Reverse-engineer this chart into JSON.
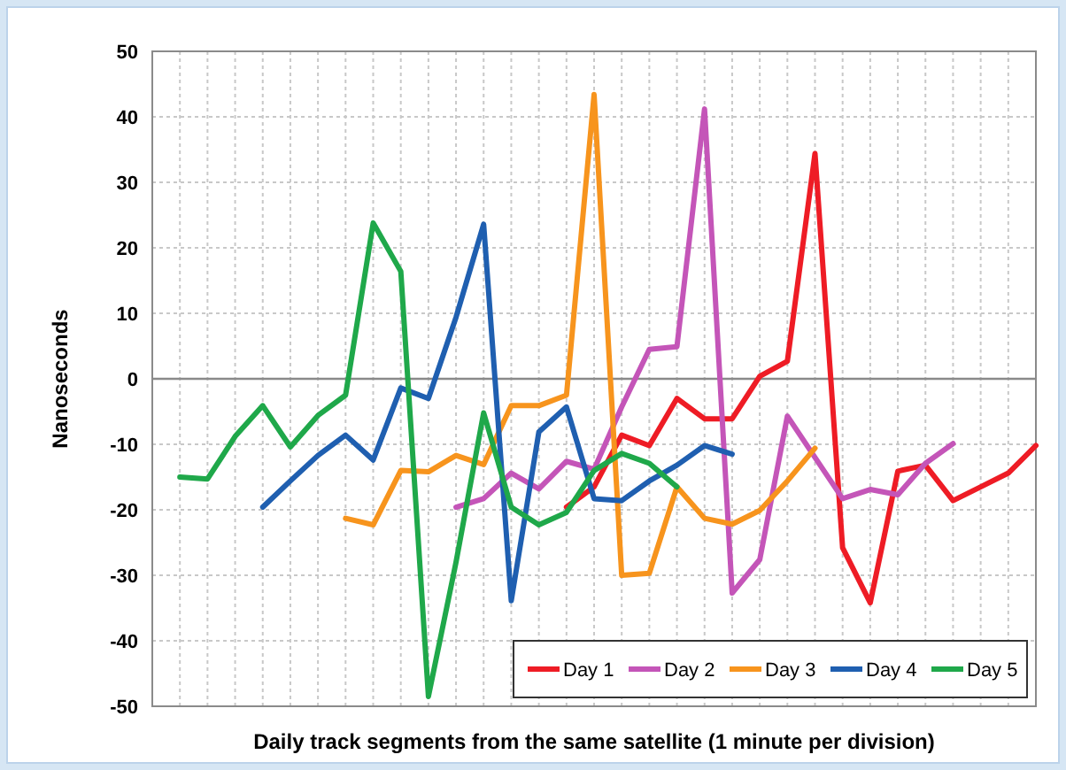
{
  "chart_data": {
    "type": "line",
    "xlabel": "Daily track segments from the same satellite (1 minute per division)",
    "ylabel": "Nanoseconds",
    "categories": [
      null,
      null,
      null,
      null,
      null,
      null,
      null,
      null,
      null,
      null,
      null,
      null,
      null,
      null,
      null,
      null,
      null,
      null,
      null,
      null,
      null,
      null,
      null,
      null,
      null,
      null,
      null,
      null,
      null,
      null,
      null,
      null,
      null
    ],
    "ylim": [
      -50,
      50
    ],
    "yticks": [
      -50,
      -40,
      -30,
      -20,
      -10,
      0,
      10,
      20,
      30,
      40,
      50
    ],
    "grid": true,
    "legend": "bottom right",
    "marker": "none",
    "line_style": "solid",
    "series": [
      {
        "name": "Day 1",
        "color": "#ee1c25",
        "values": [
          null,
          null,
          null,
          null,
          null,
          null,
          null,
          null,
          null,
          null,
          null,
          null,
          null,
          null,
          null,
          -19.6,
          -16.5,
          -8.6,
          -10.2,
          -3.0,
          -6.1,
          -6.1,
          0.4,
          2.7,
          34.4,
          -25.8,
          -34.2,
          -14.1,
          -13.2,
          -18.6,
          -16.5,
          -14.4,
          -10.2
        ]
      },
      {
        "name": "Day 2",
        "color": "#c455b8",
        "values": [
          null,
          null,
          null,
          null,
          null,
          null,
          null,
          null,
          null,
          null,
          null,
          -19.6,
          -18.3,
          -14.4,
          -16.8,
          -12.6,
          -13.8,
          -4.3,
          4.5,
          4.9,
          41.2,
          -32.7,
          -27.6,
          -5.7,
          -12,
          -18.3,
          -16.9,
          -17.7,
          -12.9,
          -9.9,
          null,
          null,
          null
        ]
      },
      {
        "name": "Day 3",
        "color": "#f7941d",
        "values": [
          null,
          null,
          null,
          null,
          null,
          null,
          null,
          -21.3,
          -22.3,
          -14.0,
          -14.2,
          -11.7,
          -13.1,
          -4.1,
          -4.1,
          -2.5,
          43.4,
          -30.0,
          -29.7,
          -16.5,
          -21.3,
          -22.2,
          -20.1,
          -15.6,
          -10.6,
          null,
          null,
          null,
          null,
          null,
          null,
          null,
          null
        ]
      },
      {
        "name": "Day 4",
        "color": "#1f5fb0",
        "values": [
          null,
          null,
          null,
          null,
          -19.6,
          -15.6,
          -11.7,
          -8.6,
          -12.4,
          -1.4,
          -3.0,
          9.4,
          23.6,
          -33.9,
          -8.1,
          -4.3,
          -18.3,
          -18.6,
          -15.6,
          -13.2,
          -10.2,
          -11.5,
          null,
          null,
          null,
          null,
          null,
          null,
          null,
          null,
          null,
          null,
          null
        ]
      },
      {
        "name": "Day 5",
        "color": "#1fa84a",
        "values": [
          null,
          -15.0,
          -15.3,
          -8.8,
          -4.1,
          -10.4,
          -5.6,
          -2.5,
          23.8,
          16.4,
          -48.5,
          -28,
          -5.2,
          -19.6,
          -22.3,
          -20.4,
          -14,
          -11.4,
          -12.9,
          -16.5,
          null,
          null,
          null,
          null,
          null,
          null,
          null,
          null,
          null,
          null,
          null,
          null,
          null
        ]
      }
    ]
  }
}
